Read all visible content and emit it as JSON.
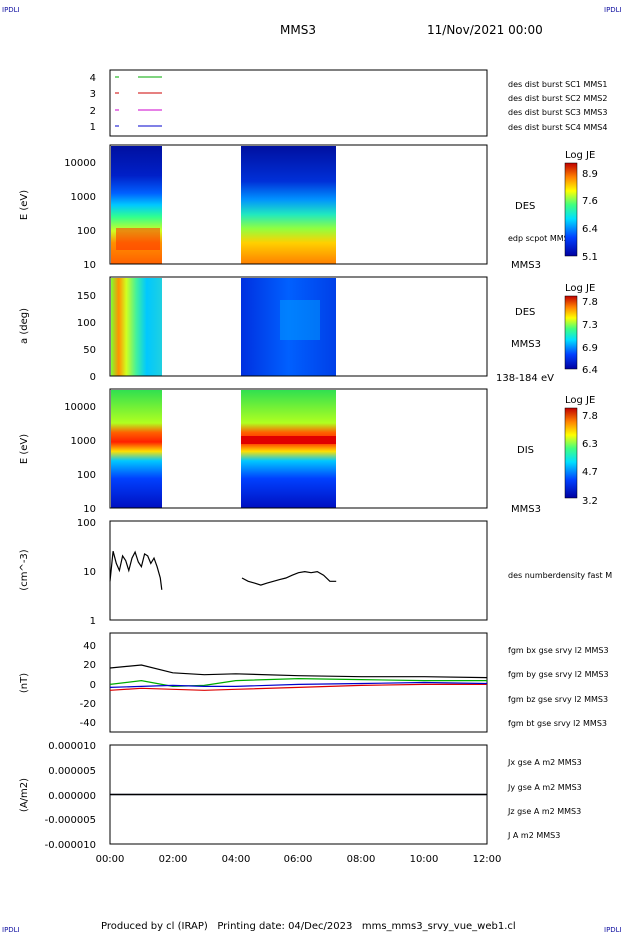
{
  "header": {
    "corner_tag": "IPDLI",
    "title": "MMS3",
    "datetime": "11/Nov/2021 00:00"
  },
  "footer": {
    "text": "Produced by cl (IRAP)   Printing date: 04/Dec/2023   mms_mms3_srvy_vue_web1.cl"
  },
  "panels": {
    "p1": {
      "legend": [
        {
          "label": "des dist burst SC1 MMS1",
          "color": "#0000cc"
        },
        {
          "label": "des dist burst SC2 MMS2",
          "color": "#cc00cc"
        },
        {
          "label": "des dist burst SC3 MMS3",
          "color": "#cc0000"
        },
        {
          "label": "des dist burst SC4 MMS4",
          "color": "#00aa00"
        }
      ]
    },
    "p2": {
      "ylabel": "E (eV)",
      "instrument": "DES",
      "sublabel": "edp scpot MMS3",
      "sc": "MMS3",
      "cb_title": "Log JE",
      "cb_ticks": [
        "8.9",
        "7.6",
        "6.4",
        "5.1"
      ]
    },
    "p3": {
      "ylabel": "a (deg)",
      "instrument": "DES",
      "sc": "MMS3",
      "energy": "138-184 eV",
      "cb_title": "Log JE",
      "cb_ticks": [
        "7.8",
        "7.3",
        "6.9",
        "6.4"
      ]
    },
    "p4": {
      "ylabel": "E (eV)",
      "instrument": "DIS",
      "sc": "MMS3",
      "cb_title": "Log JE",
      "cb_ticks": [
        "7.8",
        "6.3",
        "4.7",
        "3.2"
      ]
    },
    "p5": {
      "ylabel": "(cm^-3)",
      "legend": "des numberdensity fast M"
    },
    "p6": {
      "ylabel": "(nT)",
      "legend": [
        {
          "label": "fgm bx gse srvy l2 MMS3",
          "color": "#dd0000"
        },
        {
          "label": "fgm by gse srvy l2 MMS3",
          "color": "#00aa00"
        },
        {
          "label": "fgm bz gse srvy l2 MMS3",
          "color": "#0000cc"
        },
        {
          "label": "fgm bt gse srvy l2 MMS3",
          "color": "#000000"
        }
      ]
    },
    "p7": {
      "ylabel": "(A/m2)",
      "legend": [
        {
          "label": "Jx gse A m2 MMS3",
          "color": "#dd0000"
        },
        {
          "label": "Jy gse A m2 MMS3",
          "color": "#00aa00"
        },
        {
          "label": "Jz gse A m2 MMS3",
          "color": "#0000cc"
        },
        {
          "label": "J A m2 MMS3",
          "color": "#000000"
        }
      ]
    }
  },
  "chart_data": [
    {
      "type": "line",
      "panel": "burst availability",
      "ylim": [
        0.5,
        4.5
      ],
      "y_ticks": [
        "1",
        "2",
        "3",
        "4"
      ],
      "series": [
        {
          "name": "des dist burst SC1 MMS1",
          "y": 1,
          "color": "#0000cc"
        },
        {
          "name": "des dist burst SC2 MMS2",
          "y": 2,
          "color": "#cc00cc"
        },
        {
          "name": "des dist burst SC3 MMS3",
          "y": 3,
          "color": "#cc0000"
        },
        {
          "name": "des dist burst SC4 MMS4",
          "y": 4,
          "color": "#00aa00"
        }
      ]
    },
    {
      "type": "heatmap",
      "panel": "DES energy spectrogram",
      "ylabel": "E (eV)",
      "y_scale": "log",
      "ylim": [
        10,
        30000
      ],
      "y_ticks": [
        "10",
        "100",
        "1000",
        "10000"
      ],
      "colorbar": {
        "title": "Log JE",
        "range": [
          5.1,
          8.9
        ]
      },
      "data_intervals_h": [
        [
          0.0,
          1.7
        ],
        [
          4.2,
          7.2
        ]
      ]
    },
    {
      "type": "heatmap",
      "panel": "DES pitch angle",
      "ylabel": "a (deg)",
      "ylim": [
        0,
        180
      ],
      "y_ticks": [
        "0",
        "50",
        "100",
        "150"
      ],
      "colorbar": {
        "title": "Log JE",
        "range": [
          6.4,
          7.8
        ]
      },
      "data_intervals_h": [
        [
          0.0,
          1.7
        ],
        [
          4.2,
          7.2
        ]
      ]
    },
    {
      "type": "heatmap",
      "panel": "DIS energy spectrogram",
      "ylabel": "E (eV)",
      "y_scale": "log",
      "ylim": [
        10,
        30000
      ],
      "y_ticks": [
        "10",
        "100",
        "1000",
        "10000"
      ],
      "colorbar": {
        "title": "Log JE",
        "range": [
          3.2,
          7.8
        ]
      },
      "data_intervals_h": [
        [
          0.0,
          1.7
        ],
        [
          4.2,
          7.2
        ]
      ]
    },
    {
      "type": "line",
      "panel": "electron density",
      "ylabel": "(cm^-3)",
      "y_scale": "log",
      "ylim": [
        1,
        100
      ],
      "y_ticks": [
        "1",
        "10",
        "100"
      ],
      "series": [
        {
          "name": "des numberdensity fast M",
          "color": "#000000",
          "x": [
            0.0,
            0.1,
            0.2,
            0.3,
            0.4,
            0.5,
            0.6,
            0.7,
            0.8,
            0.9,
            1.0,
            1.1,
            1.2,
            1.3,
            1.4,
            1.5,
            1.6,
            1.65
          ],
          "y": [
            6,
            25,
            14,
            10,
            20,
            16,
            10,
            18,
            24,
            15,
            12,
            22,
            20,
            14,
            18,
            12,
            7,
            4
          ]
        },
        {
          "name": "des numberdensity fast M",
          "color": "#000000",
          "x": [
            4.2,
            4.4,
            4.6,
            4.8,
            5.0,
            5.2,
            5.4,
            5.6,
            5.8,
            6.0,
            6.2,
            6.4,
            6.6,
            6.8,
            7.0,
            7.2
          ],
          "y": [
            7,
            6,
            5.5,
            5,
            5.5,
            6,
            6.5,
            7,
            8,
            9,
            9.5,
            9,
            9.5,
            8,
            6,
            6
          ]
        }
      ]
    },
    {
      "type": "line",
      "panel": "magnetic field",
      "ylabel": "(nT)",
      "ylim": [
        -50,
        50
      ],
      "y_ticks": [
        "-40",
        "-20",
        "0",
        "20",
        "40"
      ],
      "series": [
        {
          "name": "fgm bx gse srvy l2 MMS3",
          "color": "#dd0000",
          "x": [
            0,
            1,
            2,
            3,
            4,
            6,
            8,
            10,
            12
          ],
          "y": [
            -8,
            -6,
            -7,
            -8,
            -7,
            -5,
            -3,
            -2,
            -2
          ]
        },
        {
          "name": "fgm by gse srvy l2 MMS3",
          "color": "#00aa00",
          "x": [
            0,
            1,
            2,
            3,
            4,
            6,
            8,
            10,
            12
          ],
          "y": [
            -2,
            2,
            -4,
            -3,
            2,
            4,
            3,
            2,
            2
          ]
        },
        {
          "name": "fgm bz gse srvy l2 MMS3",
          "color": "#0000cc",
          "x": [
            0,
            1,
            2,
            3,
            4,
            6,
            8,
            10,
            12
          ],
          "y": [
            -5,
            -4,
            -3,
            -4,
            -4,
            -2,
            -1,
            0,
            -1
          ]
        },
        {
          "name": "fgm bt gse srvy l2 MMS3",
          "color": "#000000",
          "x": [
            0,
            1,
            2,
            3,
            4,
            6,
            8,
            10,
            12
          ],
          "y": [
            15,
            18,
            10,
            8,
            9,
            7,
            6,
            6,
            5
          ]
        }
      ]
    },
    {
      "type": "line",
      "panel": "current density",
      "ylabel": "(A/m2)",
      "ylim": [
        -1e-05,
        1e-05
      ],
      "y_ticks": [
        "-0.000010",
        "-0.000005",
        "0.000000",
        "0.000005",
        "0.000010"
      ],
      "series": [
        {
          "name": "Jx gse A m2 MMS3",
          "color": "#dd0000",
          "x": [
            0,
            12
          ],
          "y": [
            0,
            0
          ]
        },
        {
          "name": "Jy gse A m2 MMS3",
          "color": "#00aa00",
          "x": [
            0,
            12
          ],
          "y": [
            0,
            0
          ]
        },
        {
          "name": "Jz gse A m2 MMS3",
          "color": "#0000cc",
          "x": [
            0,
            12
          ],
          "y": [
            0,
            0
          ]
        },
        {
          "name": "J A m2 MMS3",
          "color": "#000000",
          "x": [
            0,
            12
          ],
          "y": [
            0,
            0
          ]
        }
      ]
    }
  ],
  "x_axis": {
    "range_h": [
      0,
      12
    ],
    "tick_labels": [
      "00:00",
      "02:00",
      "04:00",
      "06:00",
      "08:00",
      "10:00",
      "12:00"
    ]
  }
}
